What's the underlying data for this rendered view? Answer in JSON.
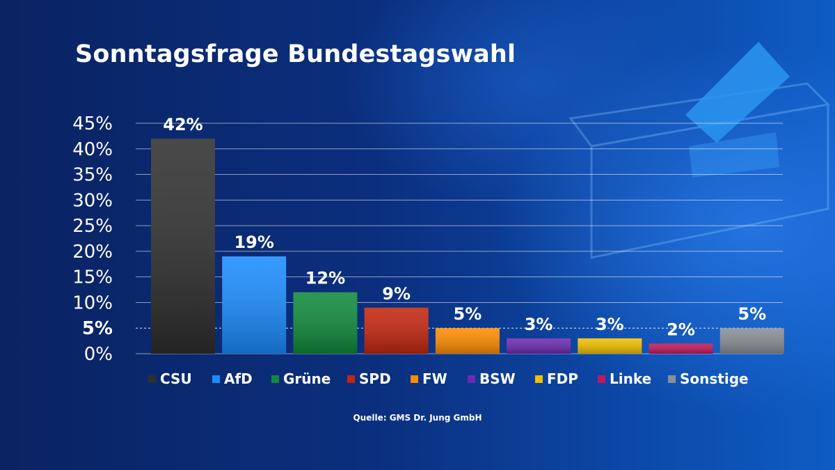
{
  "title": "Sonntagsfrage Bundestagswahl",
  "source": "Quelle: GMS Dr. Jung GmbH",
  "chart_data": {
    "type": "bar",
    "title": "Sonntagsfrage Bundestagswahl",
    "ylim": [
      0,
      45
    ],
    "yticks": [
      "0%",
      "5%",
      "10%",
      "15%",
      "20%",
      "25%",
      "30%",
      "35%",
      "40%",
      "45%"
    ],
    "highlight_tick": "5%",
    "grid": true,
    "legend_position": "bottom",
    "categories": [
      "CSU",
      "AfD",
      "Grüne",
      "SPD",
      "FW",
      "BSW",
      "FDP",
      "Linke",
      "Sonstige"
    ],
    "values": [
      42,
      19,
      12,
      9,
      5,
      3,
      3,
      2,
      5
    ],
    "labels": [
      "42%",
      "19%",
      "12%",
      "9%",
      "5%",
      "3%",
      "3%",
      "2%",
      "5%"
    ],
    "colors": [
      "#2f2f2f",
      "#1a8cff",
      "#0f8a3c",
      "#c4260e",
      "#ff8c00",
      "#6a2bb0",
      "#f0c000",
      "#c2185b",
      "#8a8f96"
    ]
  }
}
